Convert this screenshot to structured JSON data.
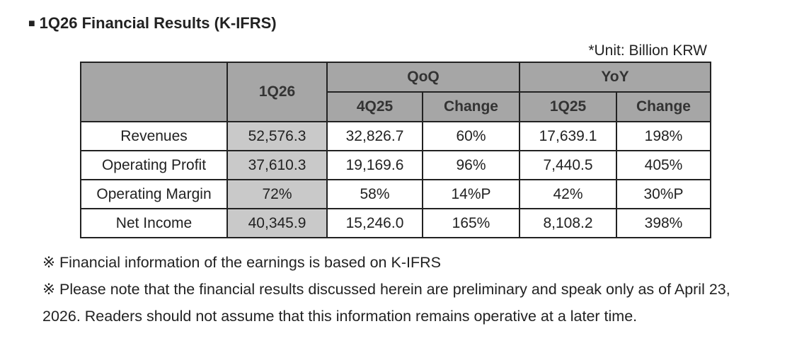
{
  "title": "1Q26 Financial Results (K-IFRS)",
  "title_bullet": "■",
  "unit": "*Unit: Billion KRW",
  "table": {
    "header_period": "1Q26",
    "group_qoq": "QoQ",
    "group_yoy": "YoY",
    "sub_qoq_period": "4Q25",
    "sub_qoq_change": "Change",
    "sub_yoy_period": "1Q25",
    "sub_yoy_change": "Change",
    "rows": [
      {
        "label": "Revenues",
        "current": "52,576.3",
        "qoq_prev": "32,826.7",
        "qoq_change": "60%",
        "yoy_prev": "17,639.1",
        "yoy_change": "198%"
      },
      {
        "label": "Operating Profit",
        "current": "37,610.3",
        "qoq_prev": "19,169.6",
        "qoq_change": "96%",
        "yoy_prev": "7,440.5",
        "yoy_change": "405%"
      },
      {
        "label": "Operating Margin",
        "current": "72%",
        "qoq_prev": "58%",
        "qoq_change": "14%P",
        "yoy_prev": "42%",
        "yoy_change": "30%P"
      },
      {
        "label": "Net Income",
        "current": "40,345.9",
        "qoq_prev": "15,246.0",
        "qoq_change": "165%",
        "yoy_prev": "8,108.2",
        "yoy_change": "398%"
      }
    ]
  },
  "notes": [
    "※ Financial information of the earnings is based on K-IFRS",
    "※ Please note that the financial results discussed herein are preliminary and speak only as of April 23, 2026. Readers should not assume that this information remains operative at a later time."
  ],
  "colors": {
    "header_bg": "#a6a6a6",
    "highlight_bg": "#c9c9c9",
    "border": "#222222"
  }
}
